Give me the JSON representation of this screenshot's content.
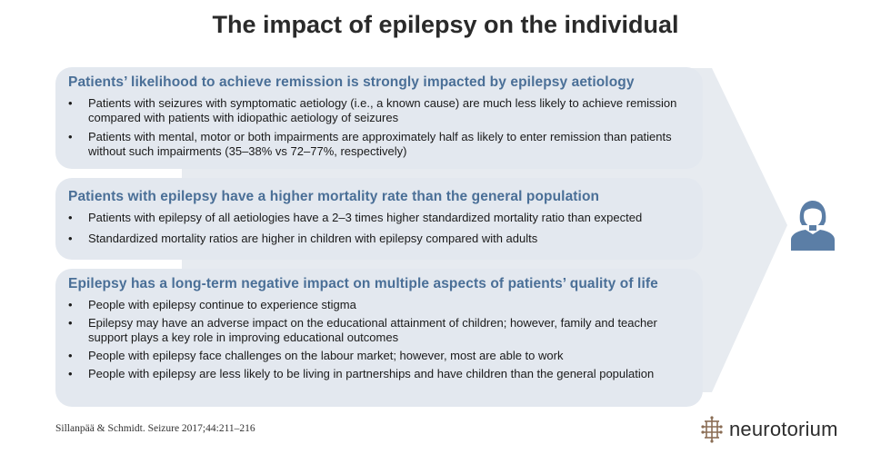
{
  "title": "The impact of epilepsy on the individual",
  "panels": [
    {
      "heading": "Patients’ likelihood to achieve remission is strongly impacted by epilepsy aetiology",
      "bullets": [
        "Patients with seizures with symptomatic aetiology (i.e., a known cause) are much less likely to achieve remission compared with patients with idiopathic aetiology of seizures",
        "Patients with mental, motor or both impairments are approximately half as likely to enter remission than patients without such impairments (35–38% vs 72–77%, respectively)"
      ]
    },
    {
      "heading": "Patients with epilepsy have a higher mortality rate than the general population",
      "bullets": [
        "Patients with epilepsy of all aetiologies have a 2–3 times higher standardized mortality ratio than expected",
        "Standardized mortality ratios are higher in children with epilepsy compared with adults"
      ]
    },
    {
      "heading": "Epilepsy has a long-term negative impact on multiple aspects of patients’ quality of life",
      "bullets": [
        "People with epilepsy continue to experience stigma",
        "Epilepsy may have an adverse impact on the educational attainment of children; however, family and teacher support plays a key role in improving educational outcomes",
        "People with epilepsy face challenges on the labour market; however, most are able to work",
        "People with epilepsy are less likely to be living in partnerships and have children than the general population"
      ]
    }
  ],
  "citation": "Sillanpää & Schmidt. Seizure 2017;44:211–216",
  "logo_text": "neurotorium",
  "icons": {
    "person": "person-icon",
    "logo": "neurotorium-logo-icon"
  },
  "colors": {
    "heading": "#4a6f97",
    "panel_bg": "#e3e8ef",
    "arrow": "#e7ebf0",
    "person": "#5b7ea6"
  }
}
